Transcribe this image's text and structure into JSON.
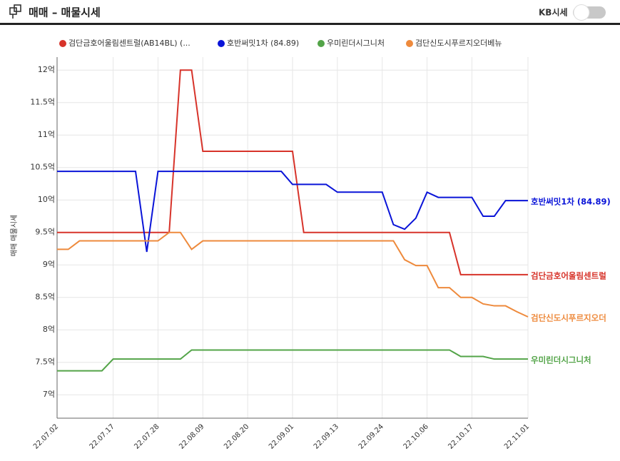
{
  "header": {
    "title": "매매 – 매물시세",
    "toggle_label": "KB시세"
  },
  "chart_data": {
    "type": "line",
    "y_label": "매매 매물시세",
    "categories": [
      "22.07.02",
      null,
      null,
      null,
      null,
      "22.07.17",
      null,
      null,
      null,
      "22.07.28",
      null,
      null,
      null,
      "22.08.09",
      null,
      null,
      null,
      "22.08.20",
      null,
      null,
      null,
      "22.09.01",
      null,
      null,
      null,
      "22.09.13",
      null,
      null,
      null,
      "22.09.24",
      null,
      null,
      null,
      "22.10.06",
      null,
      null,
      null,
      "22.10.17",
      null,
      null,
      null,
      null,
      "22.11.01"
    ],
    "ylim": [
      6.64,
      12.2
    ],
    "yticks": [
      {
        "value": 7,
        "label": "7억"
      },
      {
        "value": 7.5,
        "label": "7.5억"
      },
      {
        "value": 8,
        "label": "8억"
      },
      {
        "value": 8.5,
        "label": "8.5억"
      },
      {
        "value": 9,
        "label": "9억"
      },
      {
        "value": 9.5,
        "label": "9.5억"
      },
      {
        "value": 10,
        "label": "10억"
      },
      {
        "value": 10.5,
        "label": "10.5억"
      },
      {
        "value": 11,
        "label": "11억"
      },
      {
        "value": 11.5,
        "label": "11.5억"
      },
      {
        "value": 12,
        "label": "12억"
      }
    ],
    "grid": true,
    "series": [
      {
        "name": "검단금호어울림센트럴(AB14BL) (...",
        "end_label": "검단금호어울림센트럴",
        "color": "#d7332a",
        "values": [
          9.5,
          9.5,
          9.5,
          9.5,
          9.5,
          9.5,
          9.5,
          9.5,
          9.5,
          9.5,
          9.5,
          12,
          12,
          10.75,
          10.75,
          10.75,
          10.75,
          10.75,
          10.75,
          10.75,
          10.75,
          10.75,
          9.5,
          9.5,
          9.5,
          9.5,
          9.5,
          9.5,
          9.5,
          9.5,
          9.5,
          9.5,
          9.5,
          9.5,
          9.5,
          9.5,
          8.85,
          8.85,
          8.85,
          8.85,
          8.85,
          8.85,
          8.85
        ]
      },
      {
        "name": "호반써밋1차 (84.89)",
        "end_label": "호반써밋1차 (84.89)",
        "color": "#0a14d8",
        "values": [
          10.44,
          10.44,
          10.44,
          10.44,
          10.44,
          10.44,
          10.44,
          10.44,
          9.2,
          10.44,
          10.44,
          10.44,
          10.44,
          10.44,
          10.44,
          10.44,
          10.44,
          10.44,
          10.44,
          10.44,
          10.44,
          10.24,
          10.24,
          10.24,
          10.24,
          10.12,
          10.12,
          10.12,
          10.12,
          10.12,
          9.62,
          9.55,
          9.72,
          10.12,
          10.04,
          10.04,
          10.04,
          10.04,
          9.75,
          9.75,
          9.99,
          9.99,
          9.99
        ]
      },
      {
        "name": "우미린더시그니처",
        "end_label": "우미린더시그니처",
        "color": "#53a448",
        "values": [
          7.37,
          7.37,
          7.37,
          7.37,
          7.37,
          7.55,
          7.55,
          7.55,
          7.55,
          7.55,
          7.55,
          7.55,
          7.69,
          7.69,
          7.69,
          7.69,
          7.69,
          7.69,
          7.69,
          7.69,
          7.69,
          7.69,
          7.69,
          7.69,
          7.69,
          7.69,
          7.69,
          7.69,
          7.69,
          7.69,
          7.69,
          7.69,
          7.69,
          7.69,
          7.69,
          7.69,
          7.59,
          7.59,
          7.59,
          7.55,
          7.55,
          7.55,
          7.55
        ]
      },
      {
        "name": "검단신도시푸르지오더베뉴",
        "end_label": "검단신도시푸르지오더",
        "color": "#ee8a3c",
        "values": [
          9.24,
          9.24,
          9.37,
          9.37,
          9.37,
          9.37,
          9.37,
          9.37,
          9.37,
          9.37,
          9.5,
          9.5,
          9.24,
          9.37,
          9.37,
          9.37,
          9.37,
          9.37,
          9.37,
          9.37,
          9.37,
          9.37,
          9.37,
          9.37,
          9.37,
          9.37,
          9.37,
          9.37,
          9.37,
          9.37,
          9.37,
          9.08,
          8.99,
          8.99,
          8.65,
          8.65,
          8.5,
          8.5,
          8.4,
          8.37,
          8.37,
          8.28,
          8.2
        ]
      }
    ]
  }
}
